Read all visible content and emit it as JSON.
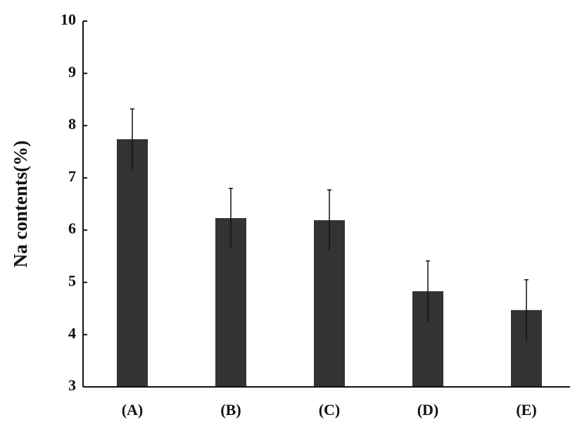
{
  "chart_data": {
    "type": "bar",
    "y_label": "Na contents(%)",
    "categories": [
      "(A)",
      "(B)",
      "(C)",
      "(D)",
      "(E)"
    ],
    "values": [
      7.74,
      6.23,
      6.19,
      4.83,
      4.47
    ],
    "errors": [
      0.58,
      0.57,
      0.58,
      0.58,
      0.58
    ],
    "color": "#333333",
    "ylim": [
      3,
      10
    ],
    "yticks": [
      3,
      4,
      5,
      6,
      7,
      8,
      9,
      10
    ],
    "grid": false
  }
}
